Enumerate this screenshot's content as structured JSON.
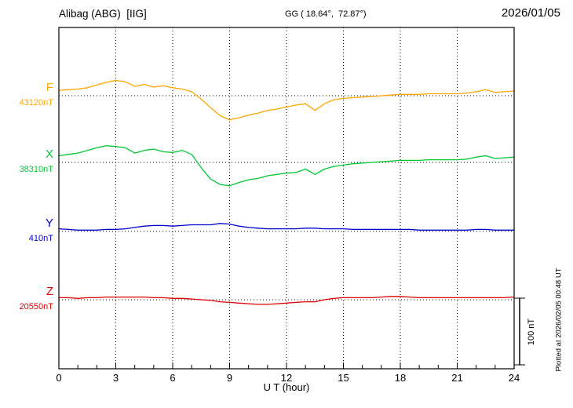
{
  "header": {
    "station": "Alibag (ABG)  [IIG]",
    "coords": "GG ( 18.64°,  72.87°)",
    "date": "2026/01/05"
  },
  "footer": {
    "xlabel": "U T (hour)",
    "plotted_note": "Plotted at 2026/02/05 00:48 UT"
  },
  "scale_bar": {
    "label": "100 nT",
    "nT": 100
  },
  "chart_data": {
    "type": "line",
    "title": "Alibag (ABG) [IIG] magnetogram 2026/01/05",
    "xlabel": "U T (hour)",
    "x_unit": "hour",
    "x_range": [
      0,
      24
    ],
    "x_ticks": [
      0,
      3,
      6,
      9,
      12,
      15,
      18,
      21,
      24
    ],
    "sample_interval_hours": 0.5,
    "offset_unit": "nT",
    "grid": "dotted-vertical-at-3h",
    "legend_position": "left-of-each-trace",
    "series": [
      {
        "name": "F",
        "label": "F",
        "base_label": "43120nT",
        "base_value": 43120,
        "color": "#FFA500",
        "offsets": [
          8,
          9,
          10,
          12,
          16,
          20,
          23,
          21,
          14,
          17,
          13,
          15,
          12,
          10,
          6,
          -5,
          -18,
          -30,
          -36,
          -33,
          -29,
          -26,
          -22,
          -20,
          -17,
          -14,
          -12,
          -22,
          -12,
          -6,
          -4,
          -3,
          -2,
          -1,
          0,
          1,
          2,
          2,
          2,
          3,
          3,
          3,
          3,
          4,
          6,
          9,
          5,
          6,
          7
        ]
      },
      {
        "name": "X",
        "label": "X",
        "base_label": "38310nT",
        "base_value": 38310,
        "color": "#00C832",
        "offsets": [
          10,
          12,
          14,
          18,
          22,
          25,
          24,
          22,
          14,
          18,
          20,
          16,
          15,
          18,
          12,
          -8,
          -25,
          -33,
          -35,
          -30,
          -26,
          -24,
          -20,
          -18,
          -16,
          -15,
          -10,
          -18,
          -10,
          -6,
          -4,
          -2,
          -1,
          0,
          1,
          2,
          3,
          3,
          3,
          4,
          4,
          4,
          4,
          5,
          8,
          10,
          6,
          7,
          8
        ]
      },
      {
        "name": "Y",
        "label": "Y",
        "base_label": "410nT",
        "base_value": 410,
        "color": "#0000CD",
        "offsets": [
          4,
          3,
          2,
          2,
          2,
          3,
          3,
          4,
          6,
          8,
          9,
          9,
          8,
          9,
          10,
          10,
          10,
          12,
          11,
          8,
          6,
          5,
          4,
          4,
          4,
          4,
          5,
          5,
          4,
          4,
          4,
          3,
          3,
          3,
          3,
          3,
          3,
          3,
          2,
          2,
          2,
          2,
          2,
          2,
          3,
          3,
          2,
          2,
          2
        ]
      },
      {
        "name": "Z",
        "label": "Z",
        "base_label": "20550nT",
        "base_value": 20550,
        "color": "#E00000",
        "offsets": [
          3,
          3,
          2,
          3,
          3,
          4,
          4,
          4,
          4,
          4,
          3,
          3,
          2,
          2,
          1,
          0,
          -1,
          -3,
          -4,
          -5,
          -6,
          -7,
          -7,
          -6,
          -5,
          -4,
          -3,
          -3,
          0,
          2,
          3,
          3,
          3,
          3,
          4,
          5,
          5,
          4,
          3,
          3,
          3,
          3,
          3,
          3,
          3,
          3,
          3,
          3,
          4
        ]
      }
    ]
  }
}
